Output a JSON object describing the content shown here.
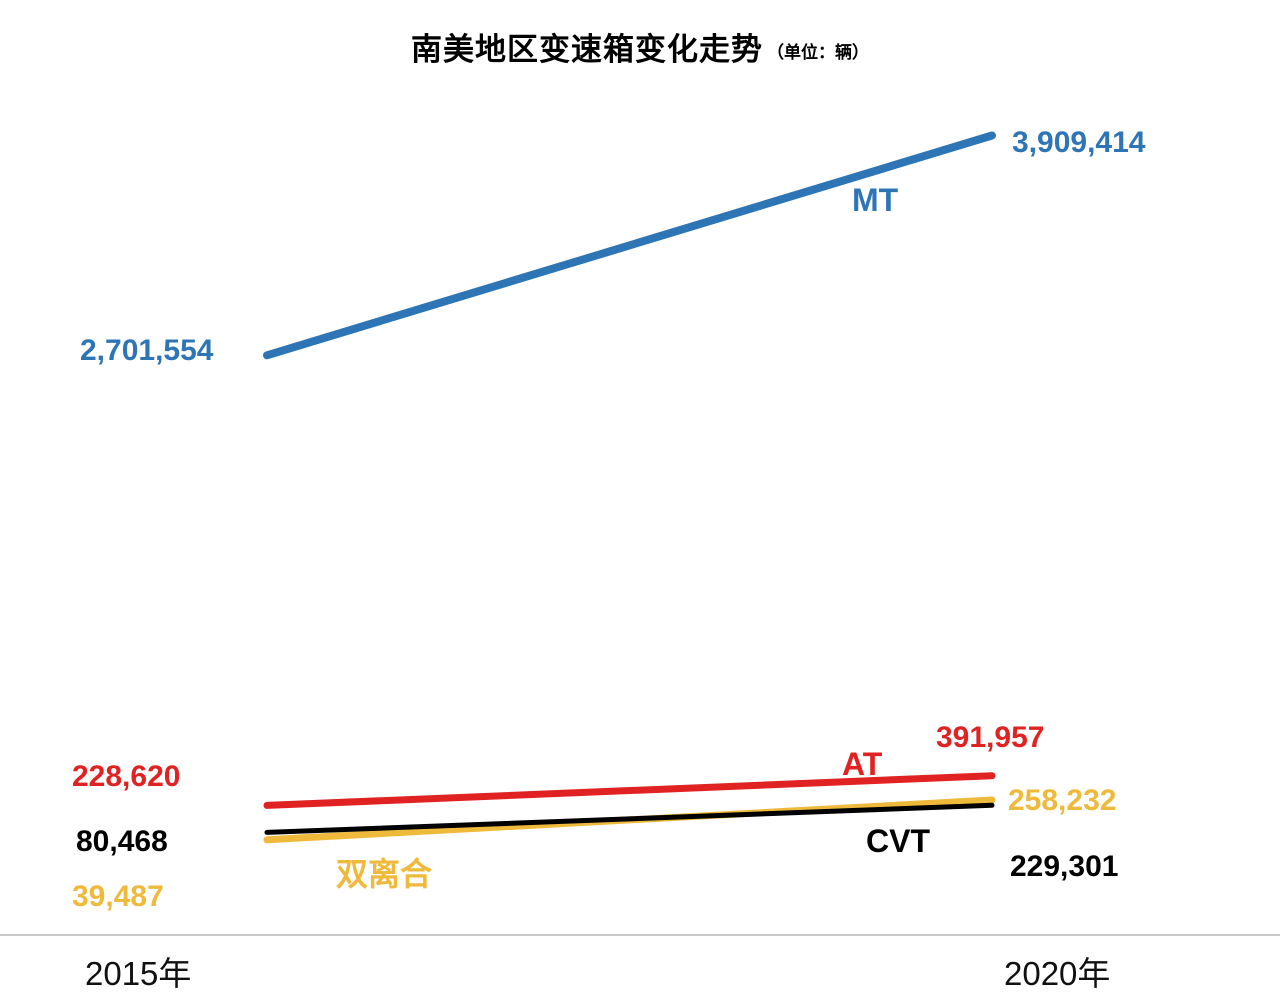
{
  "title": "南美地区变速箱变化走势",
  "title_unit": "（单位：辆）",
  "colors": {
    "mt": "#2E75B6",
    "at": "#E02222",
    "cvt": "#000000",
    "dual_clutch": "#EFB93B",
    "axis_rule": "#c9c9c9"
  },
  "chart_data": {
    "type": "line",
    "x": [
      "2015年",
      "2020年"
    ],
    "series": [
      {
        "name": "MT",
        "color": "#2E75B6",
        "values": [
          2701554,
          3909414
        ],
        "labels": [
          "2,701,554",
          "3,909,414"
        ]
      },
      {
        "name": "AT",
        "color": "#E02222",
        "values": [
          228620,
          391957
        ],
        "labels": [
          "228,620",
          "391,957"
        ]
      },
      {
        "name": "CVT",
        "color": "#000000",
        "values": [
          80468,
          229301
        ],
        "labels": [
          "80,468",
          "229,301"
        ]
      },
      {
        "name": "双离合",
        "color": "#EFB93B",
        "values": [
          39487,
          258232
        ],
        "labels": [
          "39,487",
          "258,232"
        ]
      }
    ],
    "ylim": [
      0,
      4000000
    ],
    "grid": false,
    "legend": "inline-labels",
    "title": "南美地区变速箱变化走势（单位：辆）"
  }
}
